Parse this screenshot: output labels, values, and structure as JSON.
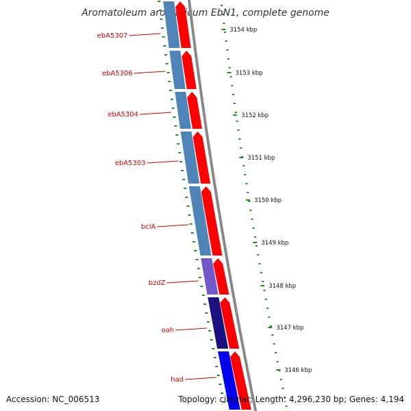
{
  "title": "Aromatoleum aromaticum EbN1, complete genome",
  "footer": {
    "accession": "Accession: NC_006513",
    "summary": "Topology: circular; Length: 4,296,230 bp; Genes: 4,194"
  },
  "colors": {
    "forward_arrow": "#ff0000",
    "backbone": "#888888",
    "gc_ticks": "#228b22",
    "label": "#cc0000",
    "separator": "#ffffff"
  },
  "kbp_markers": [
    "3154 kbp",
    "3153 kbp",
    "3152 kbp",
    "3151 kbp",
    "3150 kbp",
    "3149 kbp",
    "3148 kbp",
    "3147 kbp",
    "3146 kbp"
  ],
  "genes": [
    {
      "label": "",
      "color": "#4f84b9"
    },
    {
      "label": "ebA5307",
      "color": "#4f84b9"
    },
    {
      "label": "ebA5306",
      "color": "#4f84b9"
    },
    {
      "label": "ebA5304",
      "color": "#4f84b9"
    },
    {
      "label": "ebA5303",
      "color": "#4f84b9"
    },
    {
      "label": "bclA",
      "color": "#7159c9"
    },
    {
      "label": "bzdZ",
      "color": "#1b1280"
    },
    {
      "label": "oah",
      "color": "#0000ee"
    },
    {
      "label": "had",
      "color": "#00e8ee"
    }
  ]
}
